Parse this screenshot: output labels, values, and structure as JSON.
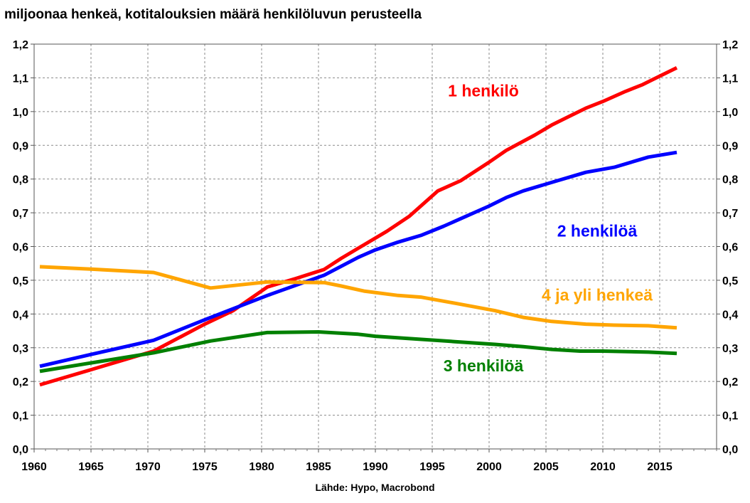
{
  "chart_data": {
    "type": "line",
    "title": "miljoonaa henkeä, kotitalouksien määrä henkilöluvun perusteella",
    "source": "Lähde: Hypo, Macrobond",
    "xlim": [
      1960,
      2020
    ],
    "ylim": [
      0,
      1.2
    ],
    "x_ticks": [
      1960,
      1965,
      1970,
      1975,
      1980,
      1985,
      1990,
      1995,
      2000,
      2005,
      2010,
      2015
    ],
    "y_ticks": [
      0,
      0.1,
      0.2,
      0.3,
      0.4,
      0.5,
      0.6,
      0.7,
      0.8,
      0.9,
      1.0,
      1.1,
      1.2
    ],
    "y_tick_labels": [
      "0,0",
      "0,1",
      "0,2",
      "0,3",
      "0,4",
      "0,5",
      "0,6",
      "0,7",
      "0,8",
      "0,9",
      "1,0",
      "1,1",
      "1,2"
    ],
    "grid": true,
    "series": [
      {
        "name": "1 henkilö",
        "color": "#ff0000",
        "points": [
          [
            1960.5,
            0.19
          ],
          [
            1965,
            0.235
          ],
          [
            1970.5,
            0.29
          ],
          [
            1975,
            0.37
          ],
          [
            1977.5,
            0.41
          ],
          [
            1980.5,
            0.48
          ],
          [
            1983,
            0.505
          ],
          [
            1985.5,
            0.532
          ],
          [
            1987,
            0.565
          ],
          [
            1989,
            0.605
          ],
          [
            1991,
            0.645
          ],
          [
            1993,
            0.69
          ],
          [
            1995.5,
            0.765
          ],
          [
            1997.5,
            0.795
          ],
          [
            2000,
            0.85
          ],
          [
            2001.5,
            0.885
          ],
          [
            2004,
            0.93
          ],
          [
            2005.5,
            0.96
          ],
          [
            2007,
            0.985
          ],
          [
            2008.5,
            1.01
          ],
          [
            2010,
            1.03
          ],
          [
            2012,
            1.06
          ],
          [
            2013.5,
            1.08
          ],
          [
            2015,
            1.105
          ],
          [
            2016.5,
            1.13
          ]
        ]
      },
      {
        "name": "2 henkilöä",
        "color": "#0000ff",
        "points": [
          [
            1960.5,
            0.245
          ],
          [
            1965,
            0.28
          ],
          [
            1970.5,
            0.322
          ],
          [
            1975,
            0.383
          ],
          [
            1980.5,
            0.455
          ],
          [
            1985.5,
            0.515
          ],
          [
            1988.5,
            0.568
          ],
          [
            1990,
            0.59
          ],
          [
            1992,
            0.613
          ],
          [
            1994,
            0.633
          ],
          [
            1996,
            0.66
          ],
          [
            1998,
            0.69
          ],
          [
            2000,
            0.72
          ],
          [
            2001.5,
            0.745
          ],
          [
            2003,
            0.765
          ],
          [
            2006,
            0.795
          ],
          [
            2008.5,
            0.82
          ],
          [
            2011,
            0.835
          ],
          [
            2014,
            0.865
          ],
          [
            2016.5,
            0.879
          ]
        ]
      },
      {
        "name": "3 henkilöä",
        "color": "#008000",
        "points": [
          [
            1960.5,
            0.23
          ],
          [
            1965,
            0.255
          ],
          [
            1970.5,
            0.285
          ],
          [
            1975.5,
            0.32
          ],
          [
            1980.5,
            0.345
          ],
          [
            1985,
            0.347
          ],
          [
            1988.5,
            0.34
          ],
          [
            1990,
            0.334
          ],
          [
            1993,
            0.327
          ],
          [
            1997,
            0.318
          ],
          [
            2000.5,
            0.31
          ],
          [
            2003,
            0.303
          ],
          [
            2005.5,
            0.295
          ],
          [
            2008,
            0.29
          ],
          [
            2010,
            0.29
          ],
          [
            2014,
            0.287
          ],
          [
            2016.5,
            0.283
          ]
        ]
      },
      {
        "name": "4 ja yli henkeä",
        "color": "#ffa500",
        "points": [
          [
            1960.5,
            0.54
          ],
          [
            1965,
            0.533
          ],
          [
            1970.5,
            0.523
          ],
          [
            1975.5,
            0.477
          ],
          [
            1980.5,
            0.495
          ],
          [
            1985.5,
            0.493
          ],
          [
            1987,
            0.483
          ],
          [
            1989,
            0.468
          ],
          [
            1992,
            0.455
          ],
          [
            1994,
            0.45
          ],
          [
            1997,
            0.432
          ],
          [
            2000.5,
            0.41
          ],
          [
            2003,
            0.39
          ],
          [
            2005.5,
            0.378
          ],
          [
            2008.5,
            0.37
          ],
          [
            2011,
            0.367
          ],
          [
            2014,
            0.365
          ],
          [
            2016.5,
            0.359
          ]
        ]
      }
    ],
    "annotations": [
      {
        "series": 0,
        "text": "1 henkilö",
        "x": 1999.5,
        "y": 1.045
      },
      {
        "series": 1,
        "text": "2 henkilöä",
        "x": 2009.5,
        "y": 0.63
      },
      {
        "series": 3,
        "text": "4 ja yli henkeä",
        "x": 2009.5,
        "y": 0.44
      },
      {
        "series": 2,
        "text": "3 henkilöä",
        "x": 1999.5,
        "y": 0.23
      }
    ]
  }
}
